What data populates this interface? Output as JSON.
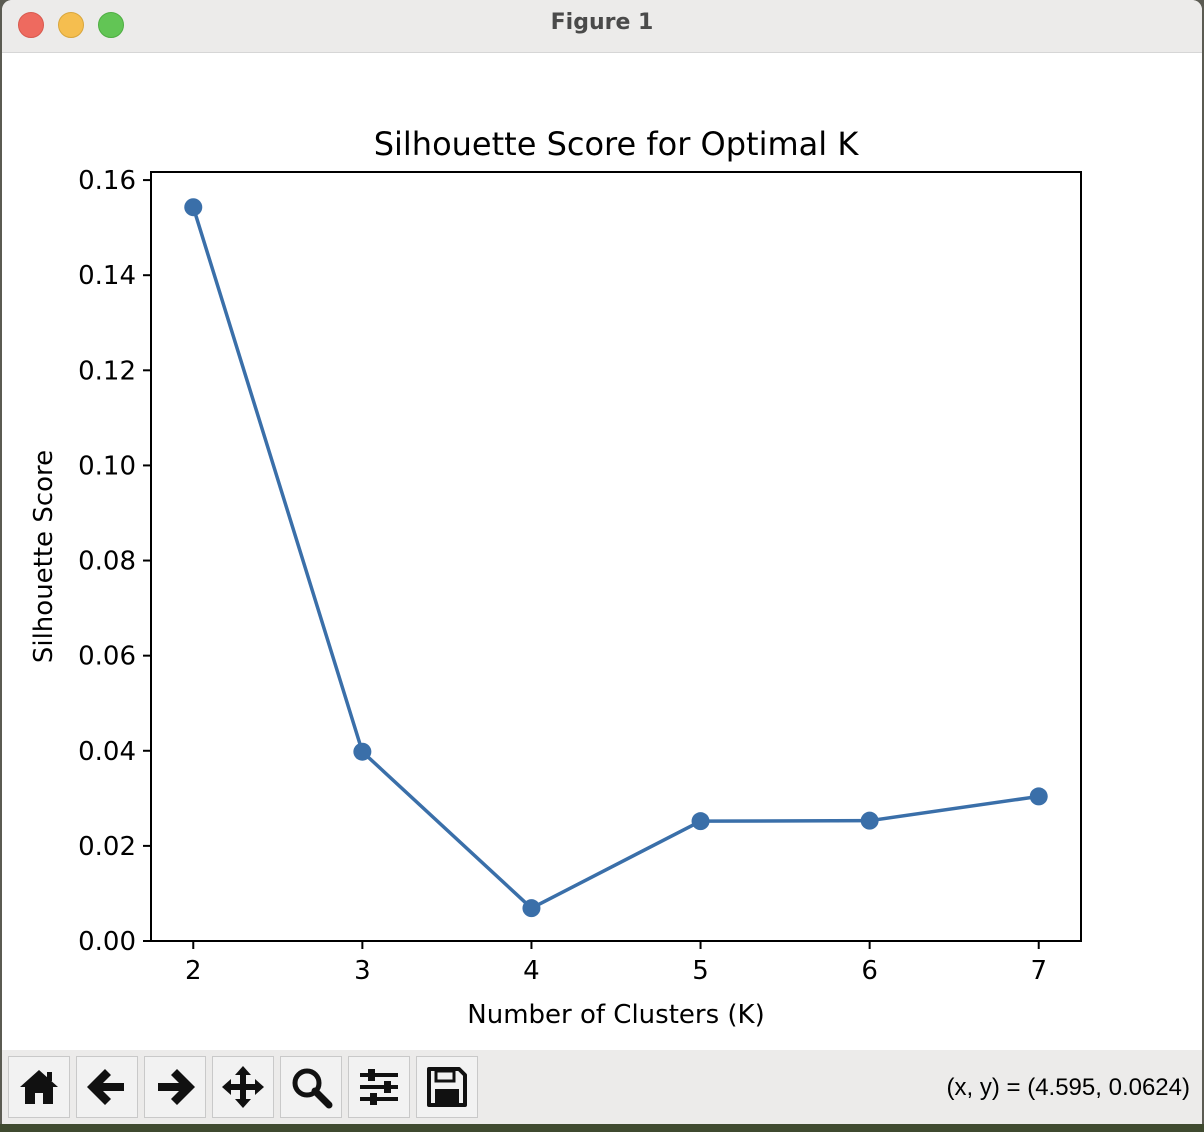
{
  "window": {
    "title": "Figure 1"
  },
  "toolbar": {
    "buttons": [
      {
        "icon": "home-icon"
      },
      {
        "icon": "back-arrow-icon"
      },
      {
        "icon": "forward-arrow-icon"
      },
      {
        "icon": "pan-move-icon"
      },
      {
        "icon": "zoom-magnifier-icon"
      },
      {
        "icon": "configure-subplots-icon"
      },
      {
        "icon": "save-floppy-icon"
      }
    ],
    "coords": "(x, y) = (4.595, 0.0624)"
  },
  "chart_data": {
    "type": "line",
    "title": "Silhouette Score for Optimal K",
    "xlabel": "Number of Clusters (K)",
    "ylabel": "Silhouette Score",
    "x": [
      2,
      3,
      4,
      5,
      6,
      7
    ],
    "series": [
      {
        "values": [
          0.1543,
          0.0398,
          0.0069,
          0.0252,
          0.0253,
          0.0304
        ],
        "color": "#3a6fa9",
        "marker": "circle"
      }
    ],
    "xticks": [
      "2",
      "3",
      "4",
      "5",
      "6",
      "7"
    ],
    "yticks": [
      "0.00",
      "0.02",
      "0.04",
      "0.06",
      "0.08",
      "0.10",
      "0.12",
      "0.14",
      "0.16"
    ],
    "xlim": [
      1.75,
      7.25
    ],
    "ylim": [
      0.0,
      0.1617
    ],
    "grid": false
  }
}
